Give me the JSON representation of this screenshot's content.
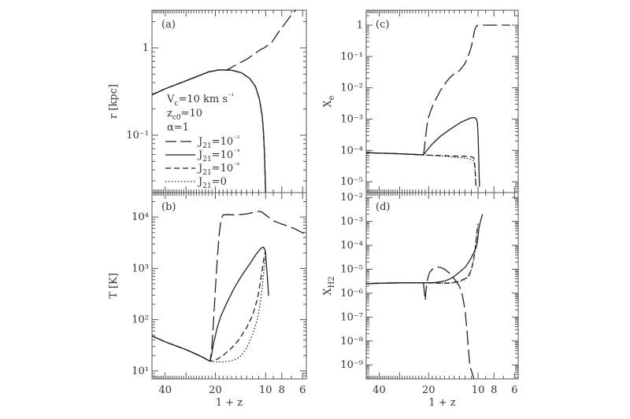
{
  "chart_data": [
    {
      "id": "a",
      "type": "line",
      "panel_label": "(a)",
      "ylabel": "r [kpc]",
      "xlabel": "",
      "xscale": "log",
      "yscale": "log",
      "xlim": [
        48,
        5.7
      ],
      "ylim": [
        0.022,
        2.7
      ],
      "yticks_major": [
        0.1,
        1
      ],
      "ytick_labels": [
        "10⁻¹",
        "1"
      ],
      "xticks_major": [
        40,
        20,
        10,
        8,
        6
      ],
      "series": [
        {
          "style": "long-dash",
          "x": [
            48,
            40,
            30,
            22,
            19,
            17,
            15,
            13,
            11.5,
            10.8,
            10.2,
            9.2,
            8.3,
            7.5,
            7.0,
            6.6
          ],
          "y": [
            0.29,
            0.34,
            0.42,
            0.53,
            0.56,
            0.56,
            0.64,
            0.74,
            0.87,
            0.95,
            1.0,
            1.15,
            1.55,
            2.0,
            2.4,
            2.7
          ]
        },
        {
          "style": "solid",
          "x": [
            48,
            40,
            30,
            22,
            19,
            16,
            14,
            12.5,
            11.5,
            10.9,
            10.5,
            10.3,
            10.15,
            10.05,
            10.0
          ],
          "y": [
            0.29,
            0.34,
            0.42,
            0.53,
            0.56,
            0.555,
            0.52,
            0.45,
            0.36,
            0.26,
            0.17,
            0.11,
            0.06,
            0.03,
            0.022
          ]
        },
        {
          "style": "short-dash",
          "x": [
            48,
            40,
            30,
            22,
            19,
            16,
            14,
            12.5,
            11.5,
            10.9,
            10.5,
            10.3,
            10.15,
            10.05,
            10.0
          ],
          "y": [
            0.29,
            0.34,
            0.42,
            0.53,
            0.56,
            0.555,
            0.52,
            0.45,
            0.36,
            0.26,
            0.17,
            0.11,
            0.06,
            0.03,
            0.022
          ]
        },
        {
          "style": "dotted",
          "x": [
            48,
            40,
            30,
            22,
            19,
            16,
            14,
            12.5,
            11.5,
            10.9,
            10.5,
            10.3,
            10.15,
            10.05,
            10.0
          ],
          "y": [
            0.29,
            0.34,
            0.42,
            0.53,
            0.56,
            0.555,
            0.52,
            0.45,
            0.36,
            0.26,
            0.17,
            0.11,
            0.06,
            0.03,
            0.022
          ]
        }
      ]
    },
    {
      "id": "b",
      "type": "line",
      "panel_label": "(b)",
      "ylabel": "T [K]",
      "xlabel": "1 + z",
      "xscale": "log",
      "yscale": "log",
      "xlim": [
        48,
        5.7
      ],
      "ylim": [
        7,
        30000
      ],
      "yticks_major": [
        10,
        100,
        1000,
        10000
      ],
      "ytick_labels": [
        "10¹",
        "10²",
        "10³",
        "10⁴"
      ],
      "xticks_major": [
        40,
        20,
        10,
        8,
        6
      ],
      "xtick_labels": [
        "40",
        "20",
        "10",
        "8",
        "6"
      ],
      "series": [
        {
          "style": "long-dash",
          "x": [
            48,
            40,
            30,
            25,
            21.5,
            21,
            20.5,
            20,
            19.5,
            19,
            18.5,
            18,
            17,
            15,
            13,
            12,
            11,
            10.5,
            10,
            9,
            8,
            7.2,
            6.6,
            6.2,
            5.7
          ],
          "y": [
            48,
            37,
            26,
            20,
            15.5,
            30,
            100,
            400,
            1500,
            4500,
            9000,
            11000,
            11200,
            11000,
            11500,
            12200,
            13000,
            12500,
            11000,
            8500,
            7300,
            6500,
            5800,
            5200,
            4600
          ]
        },
        {
          "style": "solid",
          "x": [
            48,
            40,
            30,
            25,
            21.5,
            21,
            20.5,
            19.5,
            18.5,
            17,
            15.5,
            14,
            12.5,
            11.5,
            11,
            10.6,
            10.3,
            10.1,
            10.0,
            9.95,
            9.85,
            9.7,
            9.6
          ],
          "y": [
            48,
            37,
            26,
            20,
            15.5,
            22,
            35,
            70,
            120,
            220,
            400,
            700,
            1200,
            1800,
            2200,
            2500,
            2600,
            2300,
            2000,
            1500,
            1000,
            500,
            290
          ]
        },
        {
          "style": "short-dash",
          "x": [
            48,
            40,
            30,
            25,
            21.5,
            20.5,
            19.5,
            18,
            16,
            14.5,
            13,
            12,
            11.2,
            10.8,
            10.5,
            10.3,
            10.15,
            10.05,
            10.0
          ],
          "y": [
            48,
            37,
            26,
            20,
            15.5,
            16,
            17,
            20,
            28,
            40,
            70,
            120,
            250,
            500,
            900,
            1400,
            1800,
            2100,
            2000
          ]
        },
        {
          "style": "dotted",
          "x": [
            48,
            40,
            30,
            25,
            21.5,
            20,
            18,
            16.5,
            15,
            14,
            13,
            12,
            11.2,
            10.8,
            10.5,
            10.3,
            10.15,
            10.05,
            10.0
          ],
          "y": [
            48,
            37,
            26,
            20,
            15.5,
            15,
            15,
            15.5,
            17,
            20,
            28,
            50,
            100,
            200,
            400,
            750,
            1200,
            1600,
            1800
          ]
        }
      ]
    },
    {
      "id": "c",
      "type": "line",
      "panel_label": "(c)",
      "ylabel": "X_e",
      "xlabel": "",
      "xscale": "log",
      "yscale": "log",
      "xlim": [
        48,
        5.7
      ],
      "ylim": [
        4.5e-06,
        3
      ],
      "yticks_major": [
        1e-05,
        0.0001,
        0.001,
        0.01,
        0.1,
        1
      ],
      "ytick_labels": [
        "10⁻⁵",
        "10⁻⁴",
        "10⁻³",
        "10⁻²",
        "10⁻¹",
        "1"
      ],
      "xticks_major": [
        40,
        20,
        10,
        8,
        6
      ],
      "series": [
        {
          "style": "long-dash",
          "x": [
            48,
            40,
            30,
            25,
            21.5,
            21.3,
            21.0,
            20.5,
            20,
            19,
            18,
            17,
            16,
            15,
            14,
            13,
            12.5,
            12,
            11.5,
            11,
            10.7,
            10.5,
            10.2,
            10,
            9,
            8,
            7,
            6.4
          ],
          "y": [
            8.5e-05,
            8.2e-05,
            7.8e-05,
            7.5e-05,
            7.2e-05,
            0.0001,
            0.0002,
            0.0006,
            0.0012,
            0.0025,
            0.0045,
            0.008,
            0.013,
            0.02,
            0.028,
            0.035,
            0.045,
            0.06,
            0.1,
            0.2,
            0.4,
            0.7,
            0.95,
            1,
            1,
            1,
            1,
            1
          ]
        },
        {
          "style": "solid",
          "x": [
            48,
            40,
            30,
            25,
            21.5,
            20.5,
            19,
            17,
            15,
            13.5,
            12.5,
            11.5,
            11,
            10.6,
            10.3,
            10.1,
            10.0,
            9.9,
            9.85,
            9.8
          ],
          "y": [
            8.5e-05,
            8.2e-05,
            7.8e-05,
            7.5e-05,
            7.2e-05,
            0.0001,
            0.00016,
            0.00028,
            0.00045,
            0.00065,
            0.00083,
            0.001,
            0.0011,
            0.00112,
            0.00105,
            0.0008,
            0.0003,
            5e-05,
            1.5e-05,
            7e-06
          ]
        },
        {
          "style": "short-dash",
          "x": [
            48,
            40,
            30,
            25,
            21.5,
            19,
            16,
            14,
            12.5,
            11.5,
            11,
            10.6,
            10.45,
            10.35,
            10.3
          ],
          "y": [
            8.5e-05,
            8.2e-05,
            7.8e-05,
            7.5e-05,
            7.2e-05,
            7e-05,
            6.8e-05,
            6.6e-05,
            6.5e-05,
            6.5e-05,
            6.3e-05,
            5.8e-05,
            3e-05,
            1.2e-05,
            7e-06
          ]
        },
        {
          "style": "dotted",
          "x": [
            48,
            40,
            30,
            25,
            21.5,
            19,
            16,
            14,
            12.5,
            11.5,
            11,
            10.6,
            10.45,
            10.35,
            10.3
          ],
          "y": [
            8.5e-05,
            8.2e-05,
            7.8e-05,
            7.5e-05,
            7.2e-05,
            6.9e-05,
            6.5e-05,
            6.1e-05,
            5.8e-05,
            5.5e-05,
            5.2e-05,
            4.6e-05,
            2.5e-05,
            1.1e-05,
            7e-06
          ]
        }
      ]
    },
    {
      "id": "d",
      "type": "line",
      "panel_label": "(d)",
      "ylabel": "X_H2",
      "xlabel": "1 + z",
      "xscale": "log",
      "yscale": "log",
      "xlim": [
        48,
        5.7
      ],
      "ylim": [
        2.6e-10,
        0.016
      ],
      "yticks_major": [
        1e-09,
        1e-08,
        1e-07,
        1e-06,
        1e-05,
        0.0001,
        0.001,
        0.01
      ],
      "ytick_labels": [
        "10⁻⁹",
        "10⁻⁸",
        "10⁻⁷",
        "10⁻⁶",
        "10⁻⁵",
        "10⁻⁴",
        "10⁻³",
        "10⁻²"
      ],
      "xticks_major": [
        40,
        20,
        10,
        8,
        6
      ],
      "xtick_labels": [
        "40",
        "20",
        "10",
        "8",
        "6"
      ],
      "series": [
        {
          "style": "long-dash",
          "x": [
            48,
            40,
            30,
            25,
            21.5,
            21.2,
            21.0,
            20.7,
            20.3,
            19.8,
            19,
            18,
            17,
            16,
            15,
            14,
            13,
            12.5,
            12,
            11.7,
            11.4,
            11.2,
            11.0,
            10.8,
            10.6
          ],
          "y": [
            2.5e-06,
            2.6e-06,
            2.7e-06,
            2.7e-06,
            2.7e-06,
            1e-06,
            5e-07,
            1.5e-06,
            4e-06,
            7e-06,
            1e-05,
            1.25e-05,
            1.2e-05,
            1e-05,
            7e-06,
            4e-06,
            2e-06,
            9e-07,
            2e-07,
            3e-08,
            3e-09,
            8e-10,
            6e-10,
            4e-10,
            2.6e-10
          ]
        },
        {
          "style": "solid",
          "x": [
            48,
            40,
            30,
            25,
            21.5,
            20,
            18,
            16,
            15,
            14,
            13,
            12,
            11.5,
            11,
            10.6,
            10.3,
            10.1,
            10.0,
            9.9,
            9.8,
            9.6,
            9.4
          ],
          "y": [
            2.5e-06,
            2.6e-06,
            2.7e-06,
            2.7e-06,
            2.7e-06,
            2.7e-06,
            2.8e-06,
            3.2e-06,
            3.8e-06,
            5e-06,
            7.5e-06,
            1.2e-05,
            1.8e-05,
            3e-05,
            5e-05,
            8e-05,
            0.00013,
            0.00025,
            0.00045,
            0.0007,
            0.0012,
            0.002
          ]
        },
        {
          "style": "short-dash",
          "x": [
            48,
            40,
            30,
            25,
            21.5,
            20,
            18,
            16,
            14.5,
            13,
            12,
            11.3,
            10.9,
            10.6,
            10.4,
            10.25,
            10.15,
            10.05,
            10.0
          ],
          "y": [
            2.5e-06,
            2.6e-06,
            2.7e-06,
            2.7e-06,
            2.7e-06,
            2.7e-06,
            2.65e-06,
            2.6e-06,
            2.7e-06,
            3.2e-06,
            4e-06,
            6e-06,
            1.2e-05,
            3e-05,
            8e-05,
            0.0002,
            0.0004,
            0.0006,
            0.0008
          ]
        },
        {
          "style": "dotted",
          "x": [
            48,
            40,
            30,
            25,
            21.5,
            20,
            18,
            16,
            14.5,
            13,
            12,
            11.3,
            10.9,
            10.6,
            10.4,
            10.25,
            10.15,
            10.05,
            10.0
          ],
          "y": [
            2.5e-06,
            2.6e-06,
            2.7e-06,
            2.7e-06,
            2.7e-06,
            2.7e-06,
            2.65e-06,
            2.6e-06,
            2.65e-06,
            3e-06,
            3.7e-06,
            5.5e-06,
            1.1e-05,
            2.8e-05,
            7e-05,
            0.00018,
            0.00036,
            0.00055,
            0.0007
          ]
        }
      ]
    }
  ],
  "legend": {
    "placement": "panel-a-left",
    "params": [
      "V",
      "c",
      "=10  km s",
      "⁻¹",
      "z",
      "c0",
      "=10",
      "α=1"
    ],
    "entries": [
      {
        "style": "long-dash",
        "label_main": "J",
        "label_sub": "21",
        "label_rest": "=10",
        "label_sup": "⁻²"
      },
      {
        "style": "solid",
        "label_main": "J",
        "label_sub": "21",
        "label_rest": "=10",
        "label_sup": "⁻⁴"
      },
      {
        "style": "short-dash",
        "label_main": "J",
        "label_sub": "21",
        "label_rest": "=10",
        "label_sup": "⁻⁶"
      },
      {
        "style": "dotted",
        "label_main": "J",
        "label_sub": "21",
        "label_rest": "=0",
        "label_sup": ""
      }
    ]
  },
  "colors": {
    "line": "#222222",
    "frame": "#555555",
    "text": "#333333"
  }
}
